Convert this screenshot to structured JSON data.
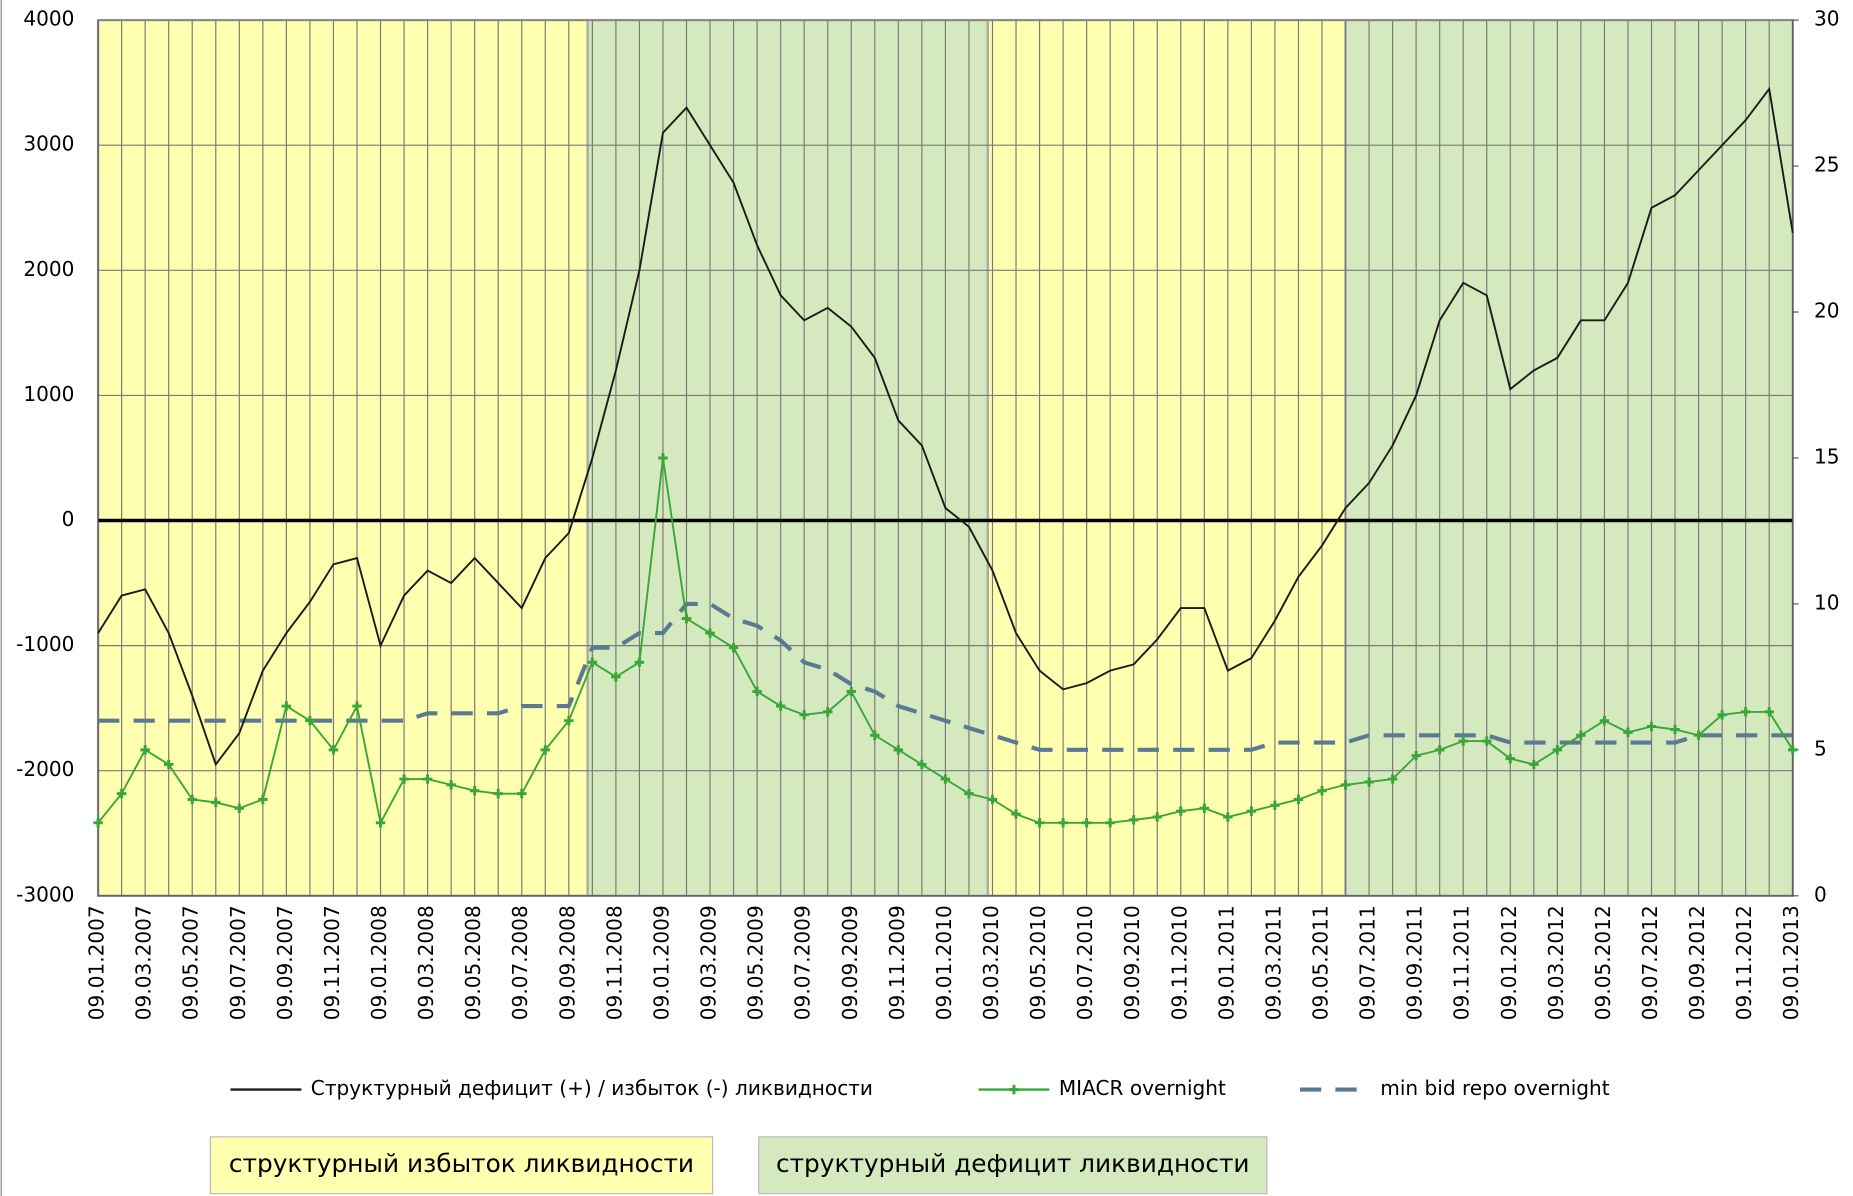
{
  "chart_data": {
    "type": "line",
    "categories": [
      "09.01.2007",
      null,
      "09.03.2007",
      null,
      "09.05.2007",
      null,
      "09.07.2007",
      null,
      "09.09.2007",
      null,
      "09.11.2007",
      null,
      "09.01.2008",
      null,
      "09.03.2008",
      null,
      "09.05.2008",
      null,
      "09.07.2008",
      null,
      "09.09.2008",
      null,
      "09.11.2008",
      null,
      "09.01.2009",
      null,
      "09.03.2009",
      null,
      "09.05.2009",
      null,
      "09.07.2009",
      null,
      "09.09.2009",
      null,
      "09.11.2009",
      null,
      "09.01.2010",
      null,
      "09.03.2010",
      null,
      "09.05.2010",
      null,
      "09.07.2010",
      null,
      "09.09.2010",
      null,
      "09.11.2010",
      null,
      "09.01.2011",
      null,
      "09.03.2011",
      null,
      "09.05.2011",
      null,
      "09.07.2011",
      null,
      "09.09.2011",
      null,
      "09.11.2011",
      null,
      "09.01.2012",
      null,
      "09.03.2012",
      null,
      "09.05.2012",
      null,
      "09.07.2012",
      null,
      "09.09.2012",
      null,
      "09.11.2012",
      null,
      "09.01.2013"
    ],
    "series": [
      {
        "name": "Структурный дефицит (+) / избыток (-) ликвидности",
        "color": "#1a1a1a",
        "axis": "y",
        "values": [
          -900,
          -600,
          -550,
          -900,
          -1400,
          -1950,
          -1700,
          -1200,
          -900,
          -650,
          -350,
          -300,
          -1000,
          -600,
          -400,
          -500,
          -300,
          -500,
          -700,
          -300,
          -100,
          500,
          1200,
          2000,
          3100,
          3300,
          3000,
          2700,
          2200,
          1800,
          1600,
          1700,
          1550,
          1300,
          800,
          600,
          100,
          -50,
          -400,
          -900,
          -1200,
          -1350,
          -1300,
          -1200,
          -1150,
          -950,
          -700,
          -700,
          -1200,
          -1100,
          -800,
          -450,
          -200,
          100,
          300,
          600,
          1000,
          1600,
          1900,
          1800,
          1050,
          1200,
          1300,
          1600,
          1600,
          1900,
          2500,
          2600,
          2800,
          3000,
          3200,
          3450,
          2300
        ]
      },
      {
        "name": "MIACR overnight",
        "color": "#3aa63a",
        "axis": "y2",
        "markers": true,
        "values": [
          2.5,
          3.5,
          5,
          4.5,
          3.3,
          3.2,
          3.0,
          3.3,
          6.5,
          6,
          5,
          6.5,
          2.5,
          4,
          4,
          3.8,
          3.6,
          3.5,
          3.5,
          5,
          6,
          8,
          7.5,
          8,
          15,
          9.5,
          9,
          8.5,
          7,
          6.5,
          6.2,
          6.3,
          7,
          5.5,
          5,
          4.5,
          4,
          3.5,
          3.3,
          2.8,
          2.5,
          2.5,
          2.5,
          2.5,
          2.6,
          2.7,
          2.9,
          3,
          2.7,
          2.9,
          3.1,
          3.3,
          3.6,
          3.8,
          3.9,
          4.0,
          4.8,
          5.0,
          5.3,
          5.3,
          4.7,
          4.5,
          5,
          5.5,
          6,
          5.6,
          5.8,
          5.7,
          5.5,
          6.2,
          6.3,
          6.3,
          5
        ]
      },
      {
        "name": "min bid repo overnight",
        "color": "#5a7a94",
        "axis": "y2",
        "dashed": true,
        "values": [
          6,
          6,
          6,
          6,
          6,
          6,
          6,
          6,
          6,
          6,
          6,
          6,
          6,
          6,
          6.25,
          6.25,
          6.25,
          6.25,
          6.5,
          6.5,
          6.5,
          8.5,
          8.5,
          9,
          9,
          10,
          10,
          9.5,
          9.25,
          8.75,
          8,
          7.75,
          7.25,
          7,
          6.5,
          6.25,
          6,
          5.75,
          5.5,
          5.25,
          5,
          5,
          5,
          5,
          5,
          5,
          5,
          5,
          5,
          5,
          5.25,
          5.25,
          5.25,
          5.25,
          5.5,
          5.5,
          5.5,
          5.5,
          5.5,
          5.5,
          5.25,
          5.25,
          5.25,
          5.25,
          5.25,
          5.25,
          5.25,
          5.25,
          5.5,
          5.5,
          5.5,
          5.5,
          5.5
        ]
      }
    ],
    "ylim": [
      -3000,
      4000
    ],
    "yticks": [
      -3000,
      -2000,
      -1000,
      0,
      1000,
      2000,
      3000,
      4000
    ],
    "y2lim": [
      0,
      30
    ],
    "y2ticks": [
      0,
      5,
      10,
      15,
      20,
      25,
      30
    ],
    "grid": true,
    "regions": [
      {
        "name": "структурный  избыток ликвидности",
        "color": "#ffffb0",
        "spans": [
          [
            0,
            20.8
          ],
          [
            37.8,
            53
          ]
        ]
      },
      {
        "name": "структурный дефицит ликвидности",
        "color": "#d4e9bd",
        "spans": [
          [
            20.8,
            37.8
          ],
          [
            53,
            72
          ]
        ]
      }
    ]
  }
}
